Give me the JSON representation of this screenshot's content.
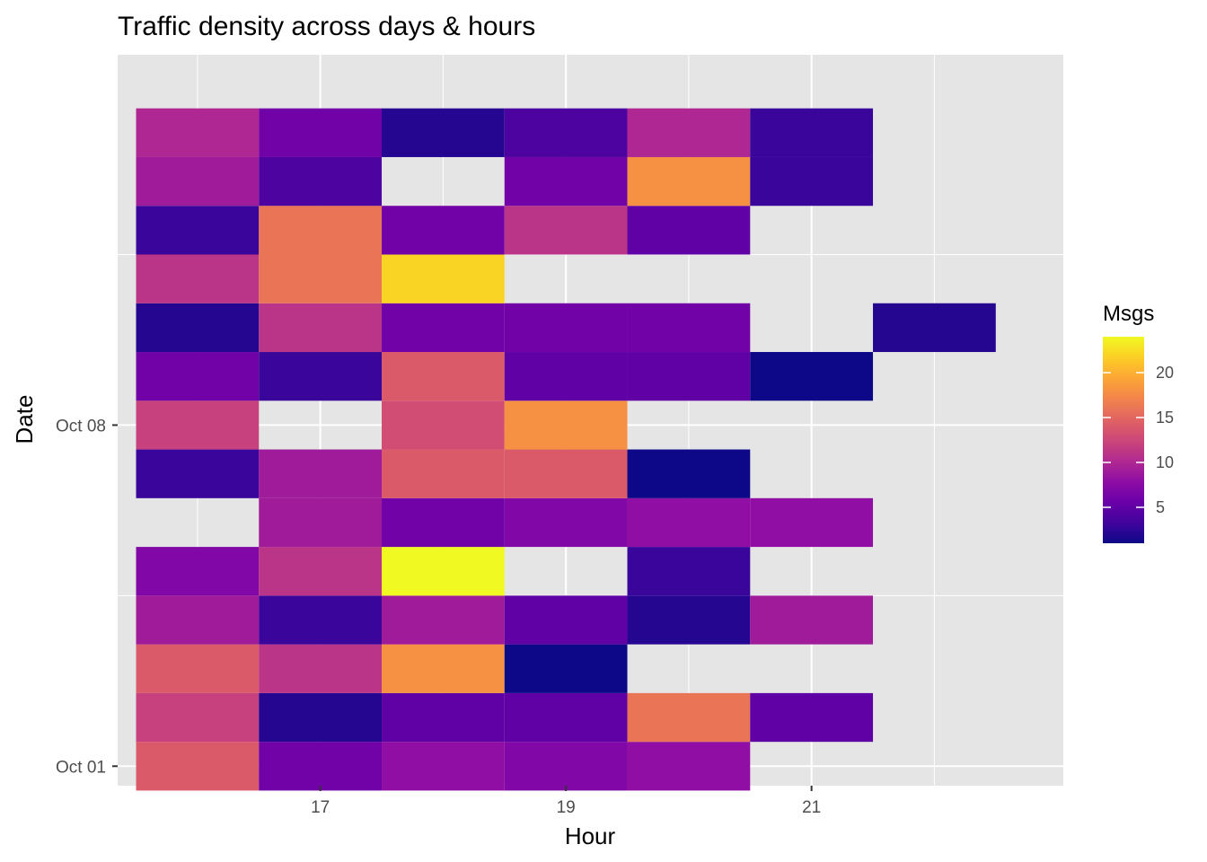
{
  "chart_data": {
    "type": "heatmap",
    "title": "Traffic density across days & hours",
    "xlabel": "Hour",
    "ylabel": "Date",
    "x_ticks": [
      17,
      19,
      21
    ],
    "y_ticks": [
      {
        "label": "Oct 01",
        "day": 1
      },
      {
        "label": "Oct 08",
        "day": 8
      }
    ],
    "xlim": [
      15.35,
      23.05
    ],
    "ylim": [
      0.6,
      15.6
    ],
    "hours": [
      16,
      17,
      18,
      19,
      20,
      21,
      22
    ],
    "days": [
      1,
      2,
      3,
      4,
      5,
      6,
      7,
      8,
      9,
      10,
      11,
      12,
      13,
      14
    ],
    "values": [
      [
        14,
        6,
        8,
        7,
        8,
        null,
        null
      ],
      [
        12,
        2,
        5,
        5,
        16,
        5,
        null
      ],
      [
        14,
        11,
        18,
        1,
        null,
        null,
        null
      ],
      [
        9,
        3,
        9,
        5,
        2,
        9,
        null
      ],
      [
        7,
        11,
        24,
        null,
        3,
        null,
        null
      ],
      [
        null,
        9,
        6,
        7,
        8,
        8,
        null
      ],
      [
        3,
        9,
        14,
        14,
        1,
        null,
        null
      ],
      [
        12,
        null,
        13,
        18,
        null,
        null,
        null
      ],
      [
        6,
        3,
        14,
        5,
        5,
        1,
        null
      ],
      [
        2,
        11,
        6,
        6,
        6,
        null,
        2
      ],
      [
        11,
        16,
        22,
        null,
        null,
        null,
        null
      ],
      [
        3,
        16,
        6,
        11,
        5,
        null,
        null
      ],
      [
        9,
        4,
        null,
        6,
        18,
        3,
        null
      ],
      [
        10,
        6,
        2,
        4,
        10,
        3,
        null
      ]
    ],
    "grid": true,
    "legend": {
      "title": "Msgs",
      "ticks": [
        5,
        10,
        15,
        20
      ],
      "range": [
        1,
        24
      ],
      "placement": "right",
      "palette": [
        "#0d0887",
        "#41049d",
        "#6a00a8",
        "#8f0da4",
        "#b12a90",
        "#cc4778",
        "#e16462",
        "#f2844b",
        "#fca636",
        "#fcce25",
        "#f0f921"
      ]
    },
    "panel_color": "#e5e5e5",
    "grid_color": "#ffffff"
  }
}
